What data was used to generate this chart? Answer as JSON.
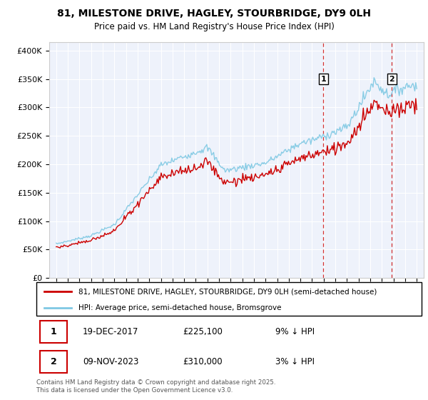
{
  "title": "81, MILESTONE DRIVE, HAGLEY, STOURBRIDGE, DY9 0LH",
  "subtitle": "Price paid vs. HM Land Registry's House Price Index (HPI)",
  "ylabel_ticks": [
    "£0",
    "£50K",
    "£100K",
    "£150K",
    "£200K",
    "£250K",
    "£300K",
    "£350K",
    "£400K"
  ],
  "ytick_values": [
    0,
    50000,
    100000,
    150000,
    200000,
    250000,
    300000,
    350000,
    400000
  ],
  "ylim": [
    0,
    415000
  ],
  "hpi_color": "#7ec8e3",
  "price_color": "#cc0000",
  "marker1_date": 2017.97,
  "marker1_price": 225100,
  "marker1_hpi": 247000,
  "marker1_label": "1",
  "marker2_date": 2023.87,
  "marker2_price": 310000,
  "marker2_hpi": 320000,
  "marker2_label": "2",
  "legend_line1": "81, MILESTONE DRIVE, HAGLEY, STOURBRIDGE, DY9 0LH (semi-detached house)",
  "legend_line2": "HPI: Average price, semi-detached house, Bromsgrove",
  "footnote": "Contains HM Land Registry data © Crown copyright and database right 2025.\nThis data is licensed under the Open Government Licence v3.0.",
  "plot_bg_color": "#eef2fb",
  "grid_color": "#ffffff",
  "fig_bg_color": "#ffffff"
}
